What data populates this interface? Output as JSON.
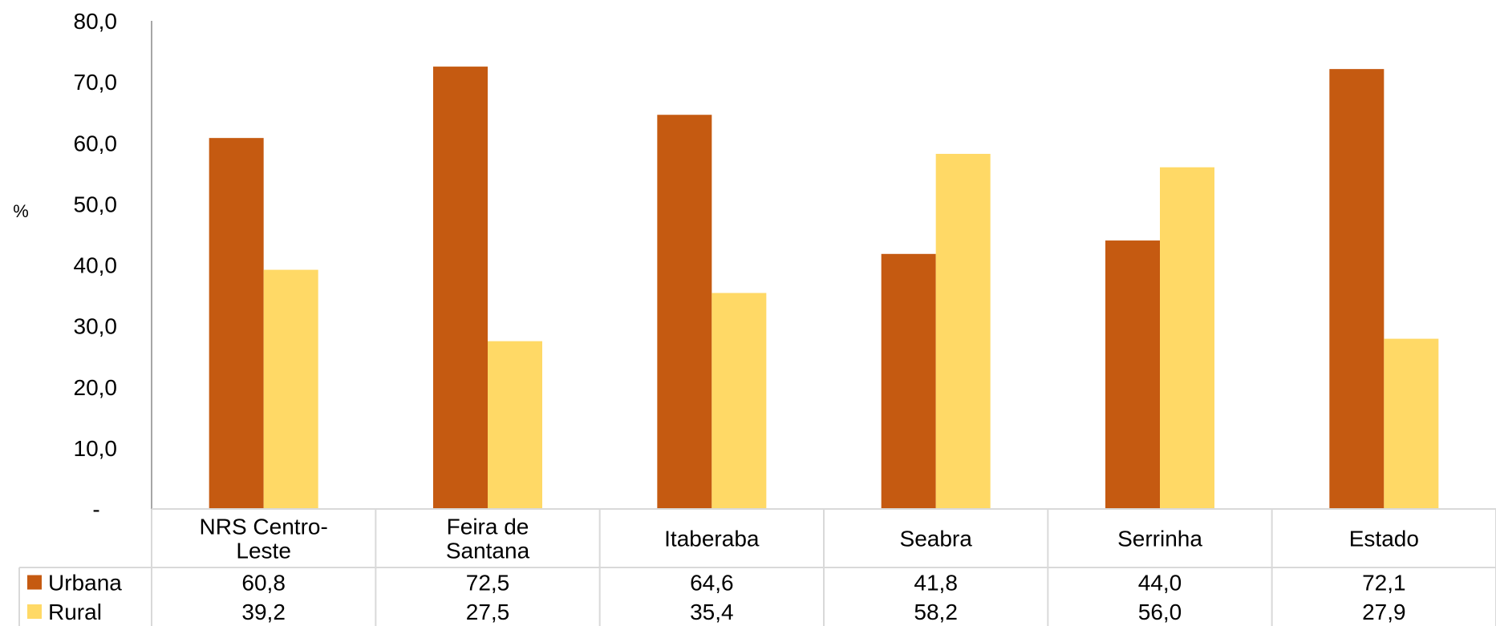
{
  "chart_data": {
    "type": "bar",
    "title": "",
    "xlabel": "",
    "ylabel": "%",
    "ylim": [
      0,
      80
    ],
    "yticks": [
      "-",
      "10,0",
      "20,0",
      "30,0",
      "40,0",
      "50,0",
      "60,0",
      "70,0",
      "80,0"
    ],
    "grid": false,
    "legend": "data-table-left",
    "categories": [
      [
        "NRS Centro-",
        "Leste"
      ],
      [
        "Feira de",
        "Santana"
      ],
      [
        "Itaberaba"
      ],
      [
        "Seabra"
      ],
      [
        "Serrinha"
      ],
      [
        "Estado"
      ]
    ],
    "series": [
      {
        "name": "Urbana",
        "color": "#C55A11",
        "values": [
          60.8,
          72.5,
          64.6,
          41.8,
          44.0,
          72.1
        ],
        "labels": [
          "60,8",
          "72,5",
          "64,6",
          "41,8",
          "44,0",
          "72,1"
        ]
      },
      {
        "name": "Rural",
        "color": "#FFD966",
        "values": [
          39.2,
          27.5,
          35.4,
          58.2,
          56.0,
          27.9
        ],
        "labels": [
          "39,2",
          "27,5",
          "35,4",
          "58,2",
          "56,0",
          "27,9"
        ]
      }
    ]
  }
}
